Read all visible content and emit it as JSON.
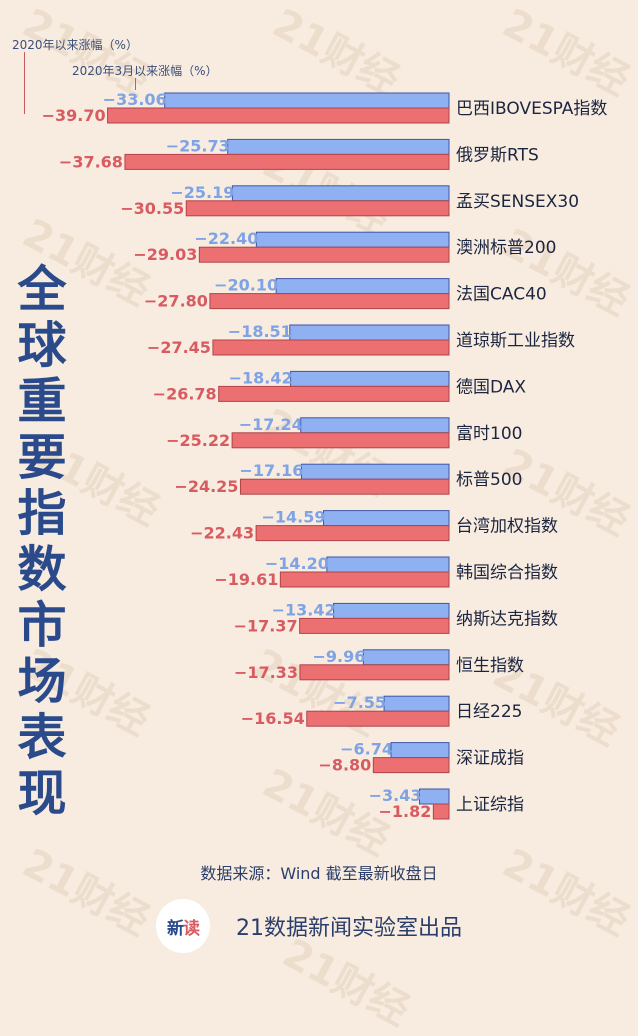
{
  "title_chars": [
    "全",
    "球",
    "重",
    "要",
    "指",
    "数",
    "市",
    "场",
    "表",
    "现"
  ],
  "legend": {
    "ytd_label": "2020年以来涨幅（%）",
    "march_label": "2020年3月以来涨幅（%）"
  },
  "source": "数据来源：Wind 截至最新收盘日",
  "credit": "21数据新闻实验室出品",
  "logo_text": {
    "part1": "新",
    "part2": "读"
  },
  "watermark_text": "21财经",
  "colors": {
    "background": "#f7ecdf",
    "march_bar_fill": "#8fb1f2",
    "march_bar_border": "#3f55a6",
    "ytd_bar_fill": "#ec6f71",
    "ytd_bar_border": "#b24449",
    "march_label": "#7ea3e6",
    "ytd_label": "#d95b62",
    "title": "#2b4a8b"
  },
  "chart_data": {
    "type": "bar",
    "orientation": "horizontal",
    "title": "全球重要指数市场表现",
    "categories": [
      "巴西IBOVESPA指数",
      "俄罗斯RTS",
      "孟买SENSEX30",
      "澳洲标普200",
      "法国CAC40",
      "道琼斯工业指数",
      "德国DAX",
      "富时100",
      "标普500",
      "台湾加权指数",
      "韩国综合指数",
      "纳斯达克指数",
      "恒生指数",
      "日经225",
      "深证成指",
      "上证综指"
    ],
    "series": [
      {
        "name": "2020年3月以来涨幅（%）",
        "values": [
          -33.06,
          -25.73,
          -25.19,
          -22.4,
          -20.1,
          -18.51,
          -18.42,
          -17.24,
          -17.16,
          -14.59,
          -14.2,
          -13.42,
          -9.96,
          -7.55,
          -6.74,
          -3.43
        ]
      },
      {
        "name": "2020年以来涨幅（%）",
        "values": [
          -39.7,
          -37.68,
          -30.55,
          -29.03,
          -27.8,
          -27.45,
          -26.78,
          -25.22,
          -24.25,
          -22.43,
          -19.61,
          -17.37,
          -17.33,
          -16.54,
          -8.8,
          -1.82
        ]
      }
    ],
    "data_labels": [
      [
        "−33.06",
        "−25.73",
        "−25.19",
        "−22.40",
        "−20.10",
        "−18.51",
        "−18.42",
        "−17.24",
        "−17.16",
        "−14.59",
        "−14.20",
        "−13.42",
        "−9.96",
        "−7.55",
        "−6.74",
        "−3.43"
      ],
      [
        "−39.70",
        "−37.68",
        "−30.55",
        "−29.03",
        "−27.80",
        "−27.45",
        "−26.78",
        "−25.22",
        "−24.25",
        "−22.43",
        "−19.61",
        "−17.37",
        "−17.33",
        "−16.54",
        "−8.80",
        "−1.82"
      ]
    ],
    "xlim": [
      -41,
      0
    ],
    "grid": false,
    "legend_position": "top-left"
  }
}
